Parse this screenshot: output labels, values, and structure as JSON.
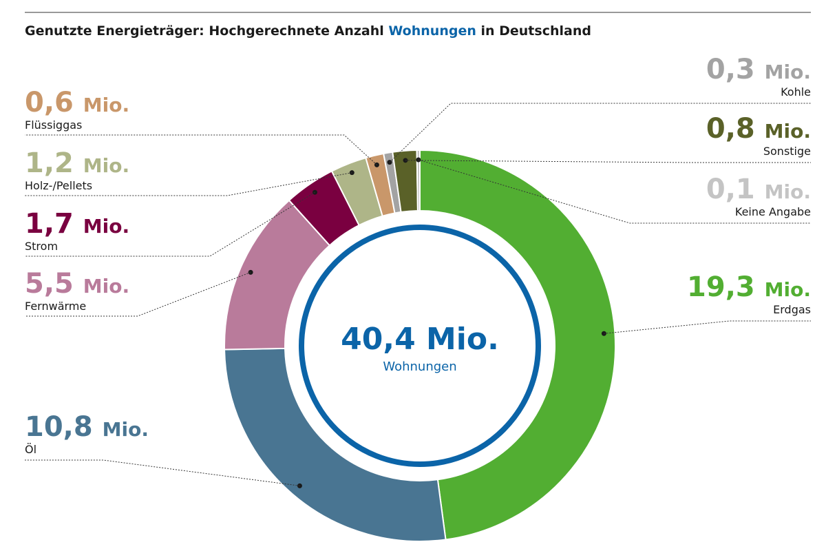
{
  "header": {
    "title_prefix": "Genutzte Energieträger: Hochgerechnete Anzahl ",
    "title_accent": "Wohnungen",
    "title_suffix": " in Deutschland"
  },
  "center": {
    "total": "40,4 Mio.",
    "label": "Wohnungen",
    "color": "#0b64a8"
  },
  "chart_data": {
    "type": "pie",
    "unit": "Mio.",
    "total": 40.4,
    "slices": [
      {
        "label": "Erdgas",
        "value": 19.3,
        "value_text": "19,3",
        "color": "#52ae32"
      },
      {
        "label": "Öl",
        "value": 10.8,
        "value_text": "10,8",
        "color": "#497592"
      },
      {
        "label": "Fernwärme",
        "value": 5.5,
        "value_text": "5,5",
        "color": "#b97b9b"
      },
      {
        "label": "Strom",
        "value": 1.7,
        "value_text": "1,7",
        "color": "#7a0040"
      },
      {
        "label": "Holz-/Pellets",
        "value": 1.2,
        "value_text": "1,2",
        "color": "#aeb588"
      },
      {
        "label": "Flüssiggas",
        "value": 0.6,
        "value_text": "0,6",
        "color": "#c9976a"
      },
      {
        "label": "Kohle",
        "value": 0.3,
        "value_text": "0,3",
        "color": "#a3a3a3"
      },
      {
        "label": "Sonstige",
        "value": 0.8,
        "value_text": "0,8",
        "color": "#5a6128"
      },
      {
        "label": "Keine Angabe",
        "value": 0.1,
        "value_text": "0,1",
        "color": "#c4c4c4"
      }
    ]
  }
}
